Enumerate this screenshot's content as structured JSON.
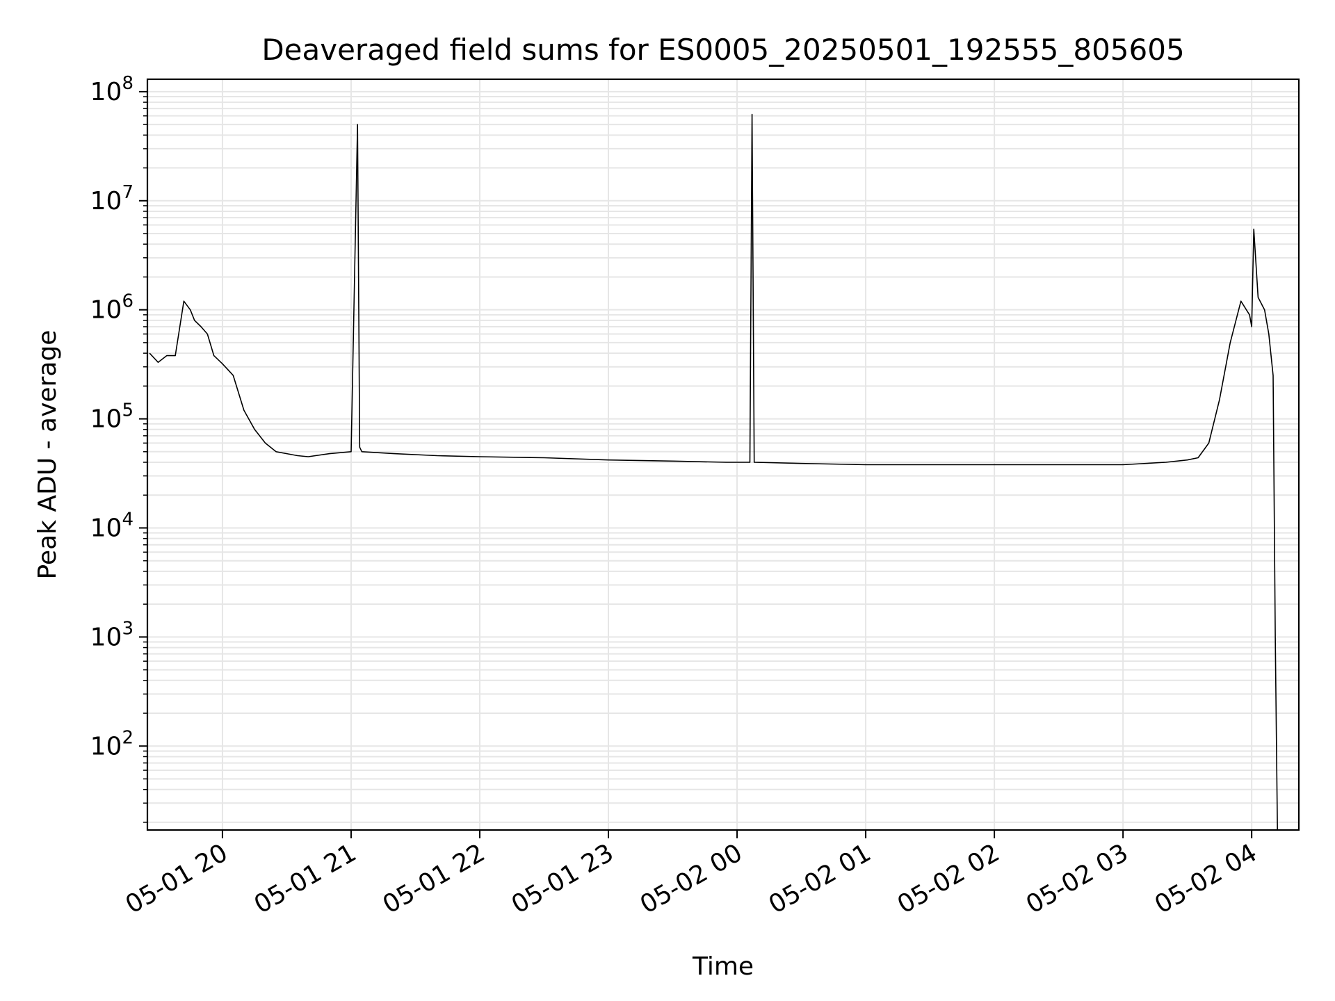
{
  "chart_data": {
    "type": "line",
    "title": "Deaveraged field sums for ES0005_20250501_192555_805605",
    "xlabel": "Time",
    "ylabel": "Peak ADU - average",
    "y_scale": "log",
    "ylim": [
      17,
      130000000
    ],
    "xlim": [
      "2025-05-01 19:25:55",
      "2025-05-02 04:22:00"
    ],
    "x_tick_labels": [
      "05-01 20",
      "05-01 21",
      "05-01 22",
      "05-01 23",
      "05-02 00",
      "05-02 01",
      "05-02 02",
      "05-02 03",
      "05-02 04"
    ],
    "x_tick_times": [
      "2025-05-01 20:00",
      "2025-05-01 21:00",
      "2025-05-01 22:00",
      "2025-05-01 23:00",
      "2025-05-02 00:00",
      "2025-05-02 01:00",
      "2025-05-02 02:00",
      "2025-05-02 03:00",
      "2025-05-02 04:00"
    ],
    "y_tick_values": [
      100,
      1000,
      10000,
      100000,
      1000000,
      10000000,
      100000000
    ],
    "y_tick_labels": [
      {
        "base": "10",
        "exp": "2"
      },
      {
        "base": "10",
        "exp": "3"
      },
      {
        "base": "10",
        "exp": "4"
      },
      {
        "base": "10",
        "exp": "5"
      },
      {
        "base": "10",
        "exp": "6"
      },
      {
        "base": "10",
        "exp": "7"
      },
      {
        "base": "10",
        "exp": "8"
      }
    ],
    "grid": true,
    "line_color": "#000000",
    "grid_color": "#e6e6e6",
    "series": [
      {
        "x": [
          "2025-05-01 19:26",
          "2025-05-01 19:30",
          "2025-05-01 19:34",
          "2025-05-01 19:38",
          "2025-05-01 19:42",
          "2025-05-01 19:45",
          "2025-05-01 19:47",
          "2025-05-01 19:50",
          "2025-05-01 19:53",
          "2025-05-01 19:56",
          "2025-05-01 20:00",
          "2025-05-01 20:05",
          "2025-05-01 20:10",
          "2025-05-01 20:15",
          "2025-05-01 20:20",
          "2025-05-01 20:25",
          "2025-05-01 20:30",
          "2025-05-01 20:35",
          "2025-05-01 20:40",
          "2025-05-01 20:50",
          "2025-05-01 21:00",
          "2025-05-01 21:03",
          "2025-05-01 21:04",
          "2025-05-01 21:05",
          "2025-05-01 21:20",
          "2025-05-01 21:40",
          "2025-05-01 22:00",
          "2025-05-01 22:30",
          "2025-05-01 23:00",
          "2025-05-01 23:30",
          "2025-05-01 23:55",
          "2025-05-02 00:06",
          "2025-05-02 00:07",
          "2025-05-02 00:08",
          "2025-05-02 00:30",
          "2025-05-02 01:00",
          "2025-05-02 01:30",
          "2025-05-02 02:00",
          "2025-05-02 02:30",
          "2025-05-02 03:00",
          "2025-05-02 03:20",
          "2025-05-02 03:30",
          "2025-05-02 03:35",
          "2025-05-02 03:40",
          "2025-05-02 03:45",
          "2025-05-02 03:50",
          "2025-05-02 03:55",
          "2025-05-02 03:59",
          "2025-05-02 04:00",
          "2025-05-02 04:01",
          "2025-05-02 04:03",
          "2025-05-02 04:06",
          "2025-05-02 04:08",
          "2025-05-02 04:10",
          "2025-05-02 04:11",
          "2025-05-02 04:12"
        ],
        "y": [
          400000,
          330000,
          380000,
          380000,
          1200000,
          1000000,
          800000,
          700000,
          600000,
          380000,
          320000,
          250000,
          120000,
          80000,
          60000,
          50000,
          48000,
          46000,
          45000,
          48000,
          50000,
          50000000,
          55000,
          50000,
          48000,
          46000,
          45000,
          44000,
          42000,
          41000,
          40000,
          40000,
          62000000,
          40000,
          39000,
          38000,
          38000,
          38000,
          38000,
          38000,
          40000,
          42000,
          44000,
          60000,
          150000,
          500000,
          1200000,
          900000,
          700000,
          5500000,
          1300000,
          1000000,
          600000,
          250000,
          1000,
          17
        ]
      }
    ]
  }
}
